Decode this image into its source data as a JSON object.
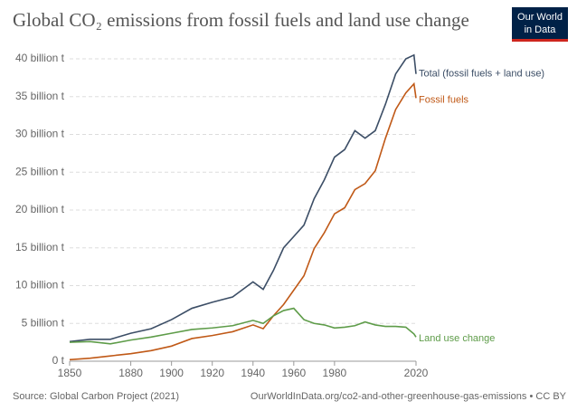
{
  "title": "Global CO₂ emissions from fossil fuels and land use change",
  "logo": [
    "Our World",
    "in Data"
  ],
  "source": "Source: Global Carbon Project (2021)",
  "attribution": "OurWorldInData.org/co2-and-other-greenhouse-gas-emissions • CC BY",
  "chart_data": {
    "type": "line",
    "x": [
      1850,
      1860,
      1870,
      1880,
      1890,
      1900,
      1910,
      1920,
      1930,
      1940,
      1945,
      1950,
      1955,
      1960,
      1965,
      1970,
      1975,
      1980,
      1985,
      1990,
      1995,
      2000,
      2005,
      2010,
      2015,
      2019,
      2020
    ],
    "series": [
      {
        "name": "Total (fossil fuels + land use)",
        "color": "#3c4e66",
        "values": [
          2.6,
          2.9,
          2.9,
          3.7,
          4.3,
          5.5,
          7.0,
          7.8,
          8.5,
          10.5,
          9.5,
          12.0,
          15.0,
          16.5,
          18.0,
          21.5,
          24.0,
          27.0,
          28.0,
          30.5,
          29.5,
          30.5,
          34.0,
          38.0,
          40.0,
          40.5,
          38.0
        ]
      },
      {
        "name": "Fossil fuels",
        "color": "#c05917",
        "values": [
          0.2,
          0.4,
          0.7,
          1.0,
          1.4,
          2.0,
          3.0,
          3.4,
          3.9,
          4.8,
          4.3,
          6.0,
          7.5,
          9.4,
          11.3,
          14.9,
          17.0,
          19.5,
          20.3,
          22.7,
          23.5,
          25.2,
          29.5,
          33.3,
          35.5,
          36.7,
          34.8
        ]
      },
      {
        "name": "Land use change",
        "color": "#5e9c49",
        "values": [
          2.5,
          2.6,
          2.3,
          2.8,
          3.2,
          3.7,
          4.2,
          4.4,
          4.7,
          5.4,
          5.0,
          6.0,
          6.7,
          7.0,
          5.5,
          5.0,
          4.8,
          4.4,
          4.5,
          4.7,
          5.2,
          4.8,
          4.6,
          4.6,
          4.5,
          3.6,
          3.2
        ]
      }
    ],
    "xlim": [
      1850,
      2020
    ],
    "xticks": [
      1850,
      1880,
      1900,
      1920,
      1940,
      1960,
      1980,
      2020
    ],
    "ylim": [
      0,
      40
    ],
    "yticks": [
      {
        "value": 0,
        "label": "0 t"
      },
      {
        "value": 5,
        "label": "5 billion t"
      },
      {
        "value": 10,
        "label": "10 billion t"
      },
      {
        "value": 15,
        "label": "15 billion t"
      },
      {
        "value": 20,
        "label": "20 billion t"
      },
      {
        "value": 25,
        "label": "25 billion t"
      },
      {
        "value": 30,
        "label": "30 billion t"
      },
      {
        "value": 35,
        "label": "35 billion t"
      },
      {
        "value": 40,
        "label": "40 billion t"
      }
    ],
    "grid": true
  }
}
